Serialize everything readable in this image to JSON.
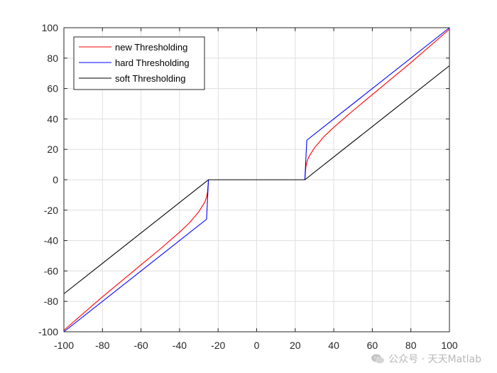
{
  "chart_data": {
    "type": "line",
    "title": "",
    "xlabel": "",
    "ylabel": "",
    "xlim": [
      -100,
      100
    ],
    "ylim": [
      -100,
      100
    ],
    "xticks": [
      -100,
      -80,
      -60,
      -40,
      -20,
      0,
      20,
      40,
      60,
      80,
      100
    ],
    "yticks": [
      -100,
      -80,
      -60,
      -40,
      -20,
      0,
      20,
      40,
      60,
      80,
      100
    ],
    "grid": true,
    "legend_position": "top-left",
    "series": [
      {
        "name": "new Thresholding",
        "color": "#ff0000",
        "x": [
          -100,
          -80,
          -60,
          -50,
          -40,
          -35,
          -30,
          -27,
          -26,
          -25.5,
          -25,
          25,
          25.5,
          26,
          27,
          30,
          35,
          40,
          50,
          60,
          80,
          100
        ],
        "y": [
          -99,
          -77,
          -56,
          -45.5,
          -34.5,
          -28.5,
          -21,
          -15,
          -11.5,
          -8,
          0,
          0,
          8,
          11.5,
          15,
          21,
          28.5,
          34.5,
          45.5,
          56,
          77,
          99
        ]
      },
      {
        "name": "hard Thresholding",
        "color": "#0000ff",
        "x": [
          -100,
          -26,
          -25,
          25,
          26,
          100
        ],
        "y": [
          -100,
          -26,
          0,
          0,
          26,
          100
        ]
      },
      {
        "name": "soft Thresholding",
        "color": "#000000",
        "x": [
          -100,
          -25,
          25,
          100
        ],
        "y": [
          -75,
          0,
          0,
          75
        ]
      }
    ]
  },
  "watermark": {
    "text": "公众号 · 天天Matlab"
  }
}
